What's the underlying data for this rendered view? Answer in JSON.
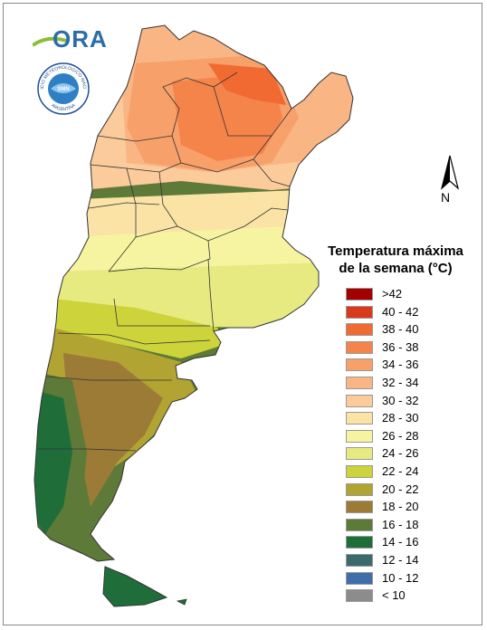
{
  "logo": {
    "text": "ORA"
  },
  "seal": {
    "top_text": "SERVICIO METEOROLOGICO NACIONAL",
    "center_text": "SMN",
    "bottom_text": "ARGENTINA"
  },
  "north_arrow": {
    "letter": "N"
  },
  "legend": {
    "title_line1": "Temperatura máxima",
    "title_line2": "de la semana (°C)",
    "items": [
      {
        "label": ">42",
        "color": "#a50000"
      },
      {
        "label": "40 - 42",
        "color": "#d93a1a"
      },
      {
        "label": "38 - 40",
        "color": "#f06a32"
      },
      {
        "label": "36 - 38",
        "color": "#f5844a"
      },
      {
        "label": "34 - 36",
        "color": "#f7a06a"
      },
      {
        "label": "32 - 34",
        "color": "#f9b584"
      },
      {
        "label": "30 - 32",
        "color": "#fbcb9c"
      },
      {
        "label": "28 - 30",
        "color": "#fbe3a6"
      },
      {
        "label": "26 - 28",
        "color": "#f6f4a0"
      },
      {
        "label": "24 - 26",
        "color": "#e6ea80"
      },
      {
        "label": "22 - 24",
        "color": "#cdd33a"
      },
      {
        "label": "20 - 22",
        "color": "#b1a432"
      },
      {
        "label": "18 - 20",
        "color": "#9c7b36"
      },
      {
        "label": "16 - 18",
        "color": "#5e7a38"
      },
      {
        "label": "14 - 16",
        "color": "#1f6e3a"
      },
      {
        "label": "12 - 14",
        "color": "#3c6a6a"
      },
      {
        "label": "10 - 12",
        "color": "#3f6ea8"
      },
      {
        "label": "< 10",
        "color": "#8c8c8c"
      }
    ]
  }
}
